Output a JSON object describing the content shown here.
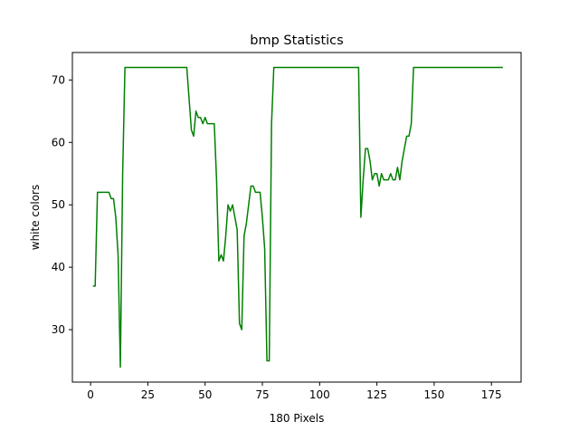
{
  "chart_data": {
    "type": "line",
    "title": "bmp Statistics",
    "xlabel": "180 Pixels",
    "ylabel": "white colors",
    "xlim": [
      -7.95,
      187.95
    ],
    "ylim": [
      21.6,
      74.4
    ],
    "xticks": [
      0,
      25,
      50,
      75,
      100,
      125,
      150,
      175
    ],
    "yticks": [
      30,
      40,
      50,
      60,
      70
    ],
    "grid": false,
    "legend": "none",
    "line_color": "#008000",
    "series": [
      {
        "x": [
          1,
          2,
          3,
          4,
          5,
          6,
          7,
          8,
          9,
          10,
          11,
          12,
          13,
          14,
          15,
          16,
          17,
          18,
          19,
          20,
          21,
          22,
          23,
          24,
          25,
          26,
          27,
          28,
          29,
          30,
          31,
          32,
          33,
          34,
          35,
          36,
          37,
          38,
          39,
          40,
          41,
          42,
          43,
          44,
          45,
          46,
          47,
          48,
          49,
          50,
          51,
          52,
          53,
          54,
          55,
          56,
          57,
          58,
          59,
          60,
          61,
          62,
          63,
          64,
          65,
          66,
          67,
          68,
          69,
          70,
          71,
          72,
          73,
          74,
          75,
          76,
          77,
          78,
          79,
          80,
          81,
          82,
          83,
          84,
          85,
          86,
          87,
          88,
          89,
          90,
          91,
          92,
          93,
          94,
          95,
          96,
          97,
          98,
          99,
          100,
          101,
          102,
          103,
          104,
          105,
          106,
          107,
          108,
          109,
          110,
          111,
          112,
          113,
          114,
          115,
          116,
          117,
          118,
          119,
          120,
          121,
          122,
          123,
          124,
          125,
          126,
          127,
          128,
          129,
          130,
          131,
          132,
          133,
          134,
          135,
          136,
          137,
          138,
          139,
          140,
          141,
          142,
          143,
          144,
          145,
          146,
          147,
          148,
          149,
          150,
          151,
          152,
          153,
          154,
          155,
          156,
          157,
          158,
          159,
          160,
          161,
          162,
          163,
          164,
          165,
          166,
          167,
          168,
          169,
          170,
          171,
          172,
          173,
          174,
          175,
          176,
          177,
          178,
          179,
          180
        ],
        "y": [
          37,
          37,
          52,
          52,
          52,
          52,
          52,
          52,
          51,
          51,
          48,
          42,
          24,
          55,
          72,
          72,
          72,
          72,
          72,
          72,
          72,
          72,
          72,
          72,
          72,
          72,
          72,
          72,
          72,
          72,
          72,
          72,
          72,
          72,
          72,
          72,
          72,
          72,
          72,
          72,
          72,
          72,
          67,
          62,
          61,
          65,
          64,
          64,
          63,
          64,
          63,
          63,
          63,
          63,
          54,
          41,
          42,
          41,
          45,
          50,
          49,
          50,
          48,
          46,
          31,
          30,
          45,
          47,
          50,
          53,
          53,
          52,
          52,
          52,
          48,
          43,
          25,
          25,
          63,
          72,
          72,
          72,
          72,
          72,
          72,
          72,
          72,
          72,
          72,
          72,
          72,
          72,
          72,
          72,
          72,
          72,
          72,
          72,
          72,
          72,
          72,
          72,
          72,
          72,
          72,
          72,
          72,
          72,
          72,
          72,
          72,
          72,
          72,
          72,
          72,
          72,
          72,
          48,
          54,
          59,
          59,
          57,
          54,
          55,
          55,
          53,
          55,
          54,
          54,
          54,
          55,
          54,
          54,
          56,
          54,
          57,
          59,
          61,
          61,
          63,
          72,
          72,
          72,
          72,
          72,
          72,
          72,
          72,
          72,
          72,
          72,
          72,
          72,
          72,
          72,
          72,
          72,
          72,
          72,
          72,
          72,
          72,
          72,
          72,
          72,
          72,
          72,
          72,
          72,
          72,
          72,
          72,
          72,
          72,
          72,
          72,
          72,
          72,
          72,
          72
        ]
      }
    ]
  }
}
